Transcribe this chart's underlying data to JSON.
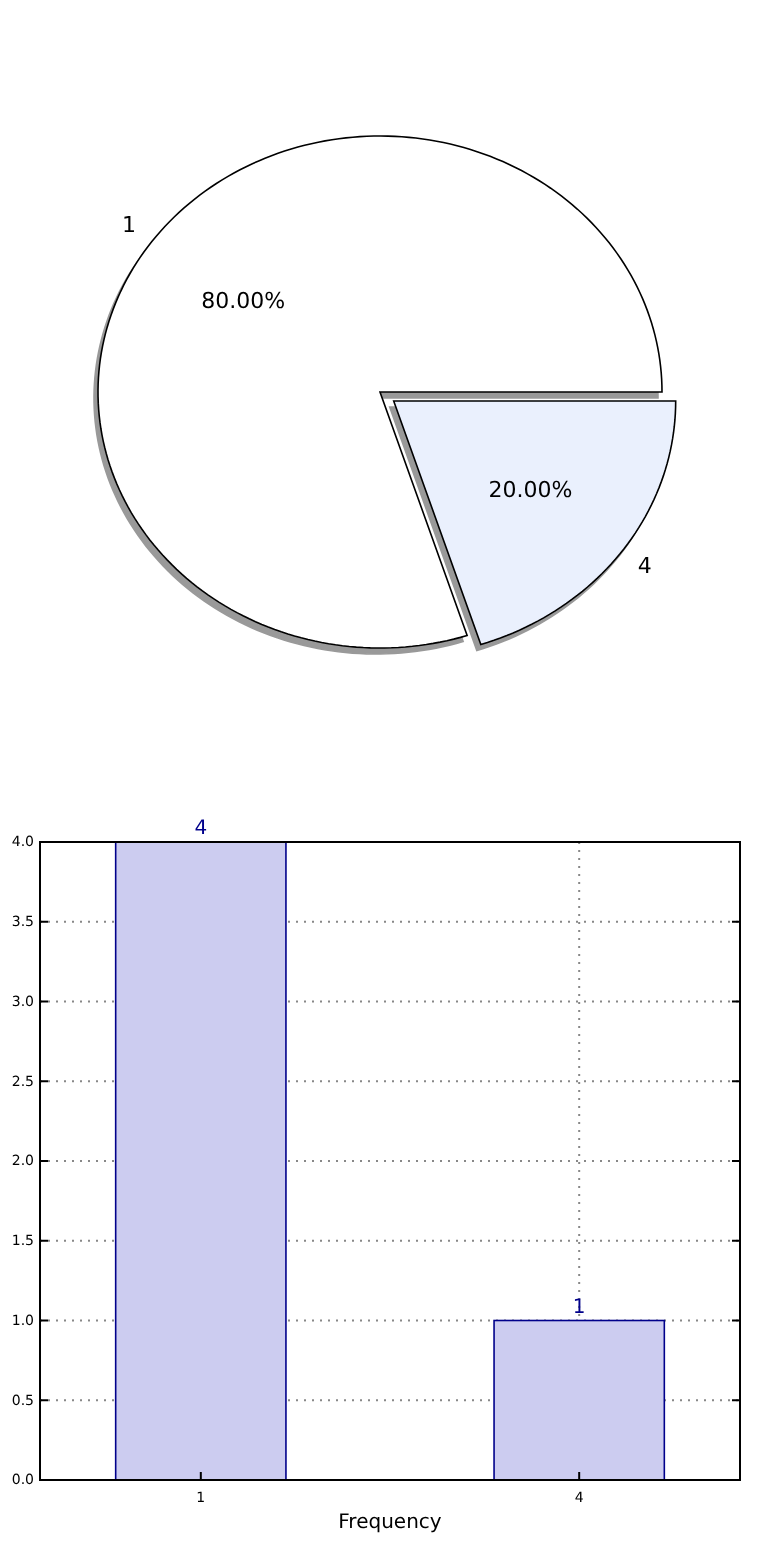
{
  "chart_data": [
    {
      "type": "pie",
      "categories": [
        "1",
        "4"
      ],
      "values": [
        80,
        20
      ],
      "colors": [
        "#ffffff",
        "#eaf0fd"
      ],
      "value_labels": [
        "80.00%",
        "20.00%"
      ]
    },
    {
      "type": "bar",
      "categories": [
        "1",
        "4"
      ],
      "values": [
        4,
        1
      ],
      "color": "#ccccf0",
      "xlabel": "Frequency",
      "ylim": [
        0,
        4
      ],
      "yticks": [
        {
          "value": 0,
          "label": "0.0"
        },
        {
          "value": 0.5,
          "label": "0.5"
        },
        {
          "value": 1,
          "label": "1.0"
        },
        {
          "value": 1.5,
          "label": "1.5"
        },
        {
          "value": 2,
          "label": "2.0"
        },
        {
          "value": 2.5,
          "label": "2.5"
        },
        {
          "value": 3,
          "label": "3.0"
        },
        {
          "value": 3.5,
          "label": "3.5"
        },
        {
          "value": 4,
          "label": "4.0"
        }
      ],
      "grid": true,
      "data_labels": true
    }
  ]
}
